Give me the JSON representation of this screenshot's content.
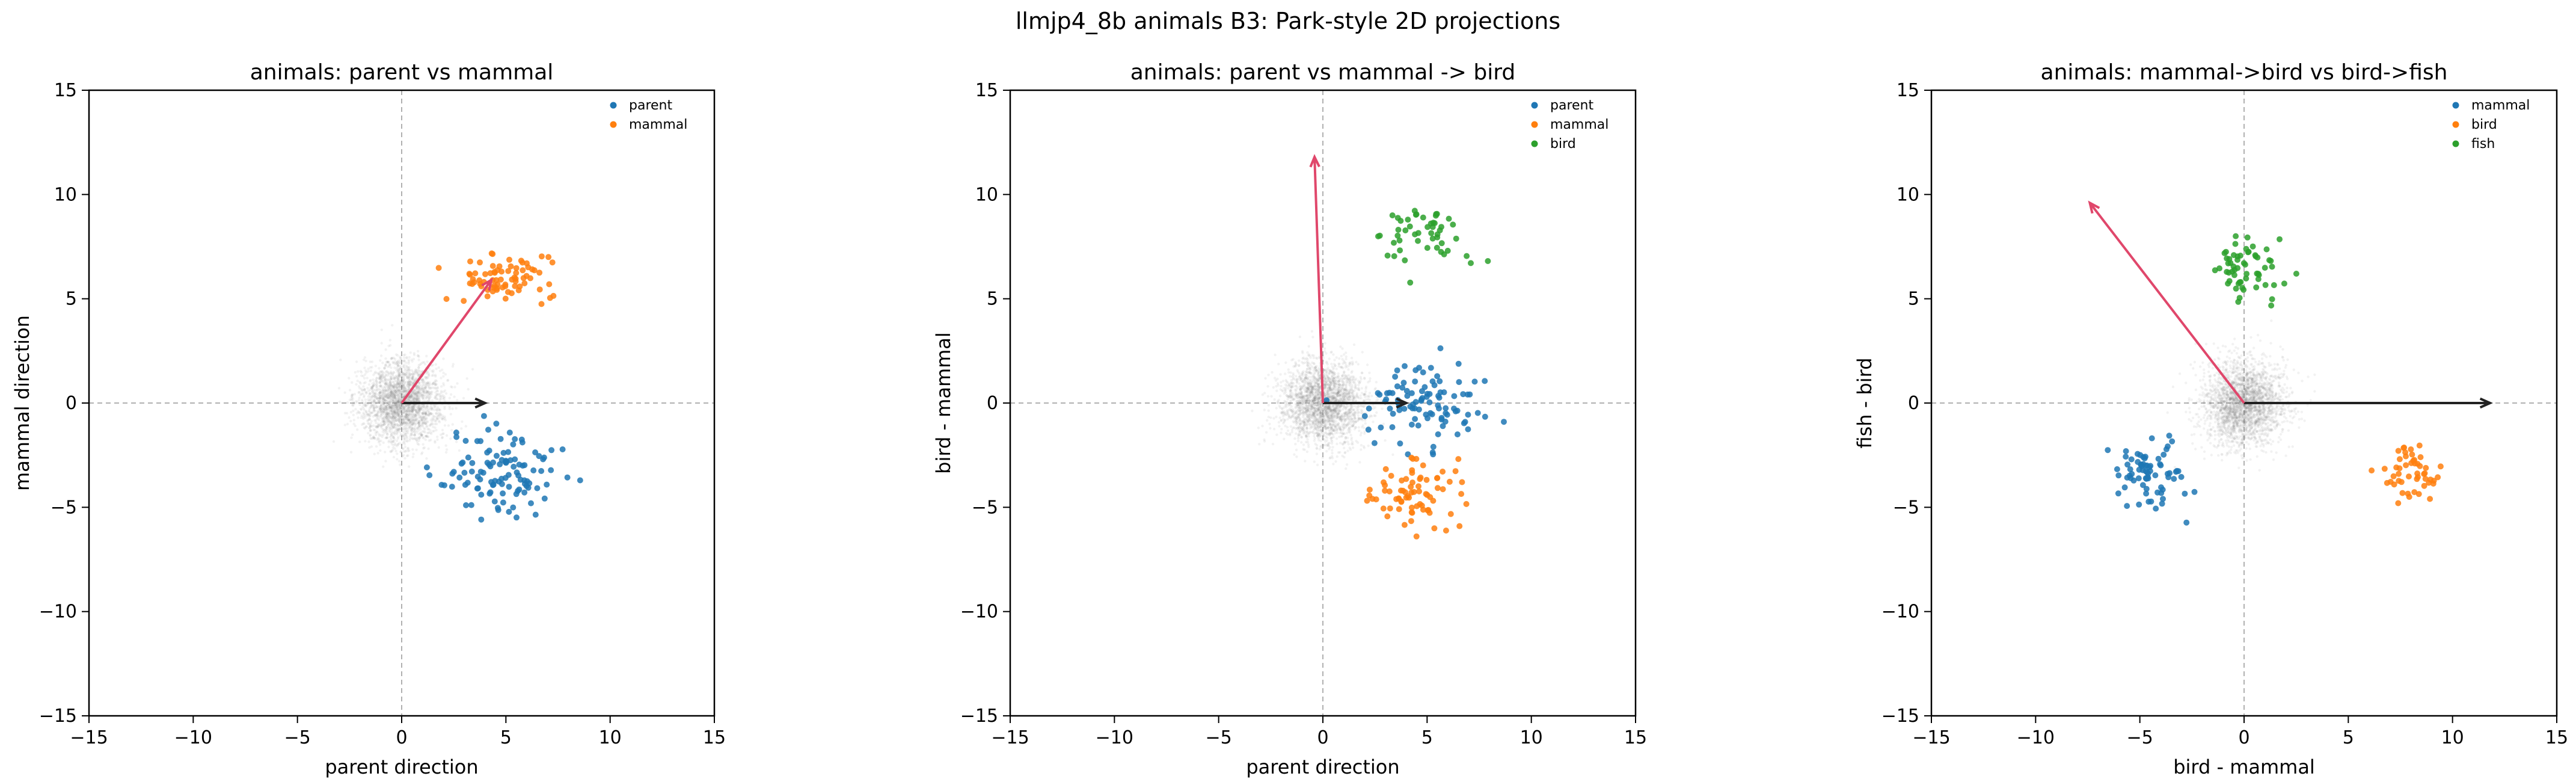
{
  "figure": {
    "suptitle": "llmjp4_8b animals B3: Park-style 2D projections"
  },
  "colors": {
    "blue": "#1f77b4",
    "orange": "#ff7f0e",
    "green": "#2ca02c",
    "arrow_red": "#e0476b",
    "arrow_black": "#222222",
    "cloud": "#6e6e6e",
    "grid": "#b0b0b0"
  },
  "chart_data": [
    {
      "type": "scatter",
      "title": "animals: parent vs mammal",
      "xlabel": "parent direction",
      "ylabel": "mammal direction",
      "xlim": [
        -15,
        15
      ],
      "ylim": [
        -15,
        15
      ],
      "xticks": [
        -15,
        -10,
        -5,
        0,
        5,
        10,
        15
      ],
      "yticks": [
        -15,
        -10,
        -5,
        0,
        5,
        10,
        15
      ],
      "legend_position": "top-right",
      "reference_lines": {
        "x": 0,
        "y": 0,
        "style": "dashed"
      },
      "background_cloud": {
        "center": [
          0,
          0
        ],
        "spread": [
          1.0,
          1.0
        ]
      },
      "series": [
        {
          "name": "parent",
          "color": "#1f77b4",
          "center": [
            4.8,
            -3.4
          ],
          "spread": [
            1.3,
            1.1
          ],
          "count": 110
        },
        {
          "name": "mammal",
          "color": "#ff7f0e",
          "center": [
            5.0,
            6.0
          ],
          "spread": [
            1.2,
            0.55
          ],
          "count": 75
        }
      ],
      "arrows": [
        {
          "from": [
            0,
            0
          ],
          "to": [
            4.0,
            0
          ],
          "color": "#222222"
        },
        {
          "from": [
            0,
            0
          ],
          "to": [
            4.3,
            5.9
          ],
          "color": "#e0476b"
        }
      ]
    },
    {
      "type": "scatter",
      "title": "animals: parent vs mammal -> bird",
      "xlabel": "parent direction",
      "ylabel": "bird - mammal",
      "xlim": [
        -15,
        15
      ],
      "ylim": [
        -15,
        15
      ],
      "xticks": [
        -15,
        -10,
        -5,
        0,
        5,
        10,
        15
      ],
      "yticks": [
        -15,
        -10,
        -5,
        0,
        5,
        10,
        15
      ],
      "legend_position": "top-right",
      "reference_lines": {
        "x": 0,
        "y": 0,
        "style": "dashed"
      },
      "background_cloud": {
        "center": [
          0,
          0
        ],
        "spread": [
          1.0,
          1.0
        ]
      },
      "series": [
        {
          "name": "parent",
          "color": "#1f77b4",
          "center": [
            4.8,
            0.0
          ],
          "spread": [
            1.4,
            1.0
          ],
          "count": 100
        },
        {
          "name": "mammal",
          "color": "#ff7f0e",
          "center": [
            4.5,
            -4.4
          ],
          "spread": [
            1.0,
            0.85
          ],
          "count": 75
        },
        {
          "name": "bird",
          "color": "#2ca02c",
          "center": [
            4.8,
            8.0
          ],
          "spread": [
            1.2,
            0.75
          ],
          "count": 50
        }
      ],
      "arrows": [
        {
          "from": [
            0,
            0
          ],
          "to": [
            4.0,
            0
          ],
          "color": "#222222"
        },
        {
          "from": [
            0,
            0
          ],
          "to": [
            -0.4,
            11.8
          ],
          "color": "#e0476b"
        }
      ]
    },
    {
      "type": "scatter",
      "title": "animals: mammal->bird vs bird->fish",
      "xlabel": "bird - mammal",
      "ylabel": "fish - bird",
      "xlim": [
        -15,
        15
      ],
      "ylim": [
        -15,
        15
      ],
      "xticks": [
        -15,
        -10,
        -5,
        0,
        5,
        10,
        15
      ],
      "yticks": [
        -15,
        -10,
        -5,
        0,
        5,
        10,
        15
      ],
      "legend_position": "top-right",
      "reference_lines": {
        "x": 0,
        "y": 0,
        "style": "dashed"
      },
      "background_cloud": {
        "center": [
          0,
          0
        ],
        "spread": [
          1.0,
          1.0
        ]
      },
      "series": [
        {
          "name": "mammal",
          "color": "#1f77b4",
          "center": [
            -4.5,
            -3.6
          ],
          "spread": [
            0.9,
            0.8
          ],
          "count": 75
        },
        {
          "name": "bird",
          "color": "#ff7f0e",
          "center": [
            8.0,
            -3.4
          ],
          "spread": [
            0.8,
            0.75
          ],
          "count": 50
        },
        {
          "name": "fish",
          "color": "#2ca02c",
          "center": [
            -0.2,
            6.4
          ],
          "spread": [
            0.8,
            0.8
          ],
          "count": 60
        }
      ],
      "arrows": [
        {
          "from": [
            0,
            0
          ],
          "to": [
            11.8,
            0
          ],
          "color": "#222222"
        },
        {
          "from": [
            0,
            0
          ],
          "to": [
            -7.4,
            9.6
          ],
          "color": "#e0476b"
        }
      ]
    }
  ]
}
